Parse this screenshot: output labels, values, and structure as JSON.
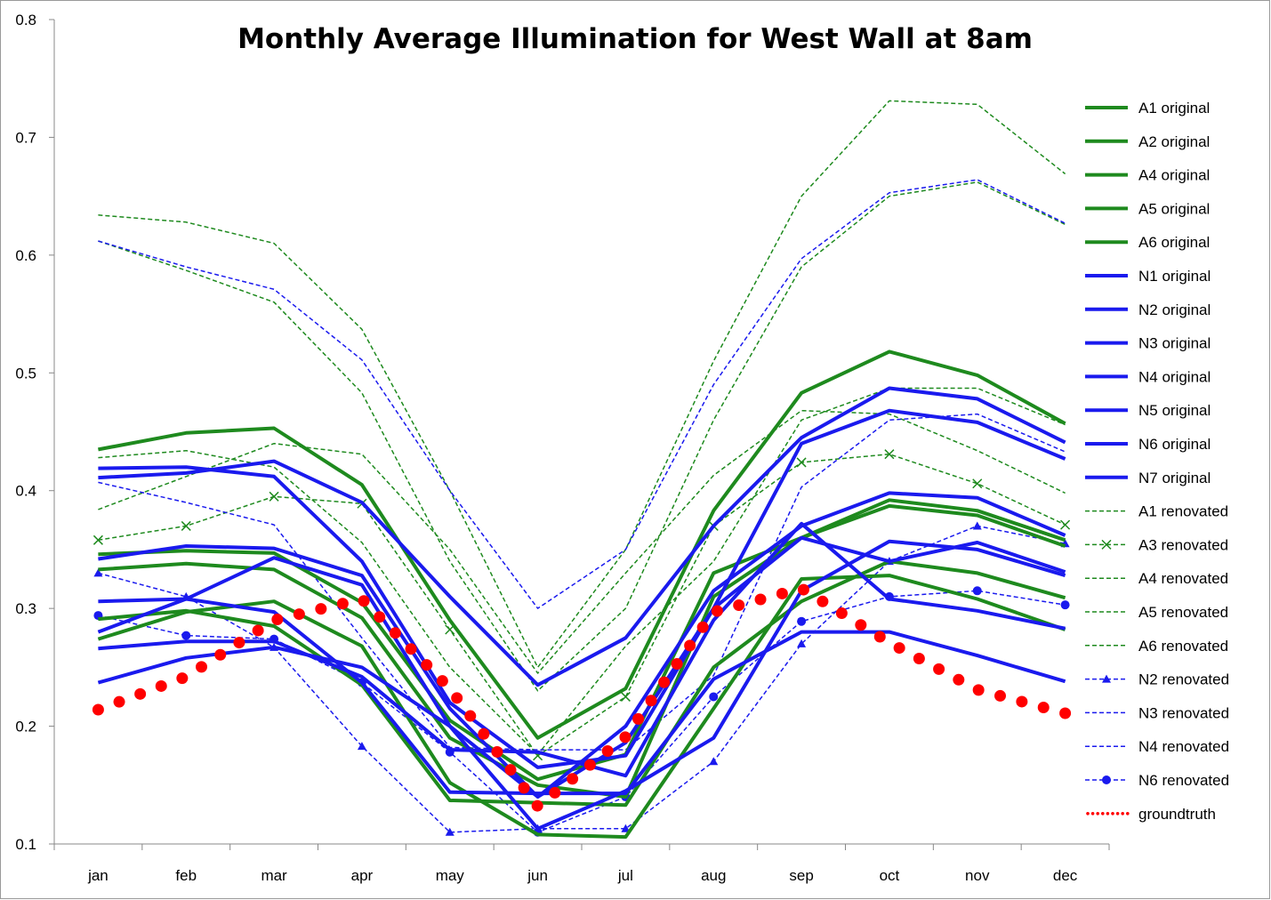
{
  "chart_data": {
    "type": "line",
    "title": "Monthly Average Illumination for West Wall at 8am",
    "xlabel": "",
    "ylabel": "",
    "categories": [
      "jan",
      "feb",
      "mar",
      "apr",
      "may",
      "jun",
      "jul",
      "aug",
      "sep",
      "oct",
      "nov",
      "dec"
    ],
    "ylim": [
      0.1,
      0.8
    ],
    "yticks": [
      "0.1",
      "0.2",
      "0.3",
      "0.4",
      "0.5",
      "0.6",
      "0.7",
      "0.8"
    ],
    "grid": false,
    "legend_position": "right",
    "colors": {
      "green": "#1e8a1e",
      "blue": "#1a1aee",
      "red": "#ff0000"
    },
    "series": [
      {
        "name": "A1 original",
        "color": "#1e8a1e",
        "style": "thick",
        "values": [
          0.435,
          0.449,
          0.453,
          0.405,
          0.29,
          0.19,
          0.232,
          0.383,
          0.483,
          0.518,
          0.498,
          0.457
        ]
      },
      {
        "name": "A2 original",
        "color": "#1e8a1e",
        "style": "thick",
        "values": [
          0.346,
          0.349,
          0.347,
          0.305,
          0.205,
          0.155,
          0.176,
          0.33,
          0.36,
          0.392,
          0.383,
          0.358
        ]
      },
      {
        "name": "A4 original",
        "color": "#1e8a1e",
        "style": "thick",
        "values": [
          0.333,
          0.338,
          0.333,
          0.292,
          0.19,
          0.15,
          0.14,
          0.31,
          0.36,
          0.387,
          0.379,
          0.353
        ]
      },
      {
        "name": "A5 original",
        "color": "#1e8a1e",
        "style": "thick",
        "values": [
          0.274,
          0.297,
          0.306,
          0.268,
          0.152,
          0.108,
          0.106,
          0.215,
          0.325,
          0.328,
          0.308,
          0.282
        ]
      },
      {
        "name": "A6 original",
        "color": "#1e8a1e",
        "style": "thick",
        "values": [
          0.291,
          0.298,
          0.285,
          0.235,
          0.137,
          0.135,
          0.133,
          0.25,
          0.306,
          0.34,
          0.33,
          0.309
        ]
      },
      {
        "name": "N1 original",
        "color": "#1a1aee",
        "style": "thick",
        "values": [
          0.419,
          0.42,
          0.412,
          0.34,
          0.22,
          0.165,
          0.175,
          0.3,
          0.44,
          0.468,
          0.458,
          0.427
        ]
      },
      {
        "name": "N2 original",
        "color": "#1a1aee",
        "style": "thick",
        "values": [
          0.411,
          0.415,
          0.425,
          0.39,
          0.31,
          0.235,
          0.275,
          0.37,
          0.445,
          0.487,
          0.478,
          0.441
        ]
      },
      {
        "name": "N3 original",
        "color": "#1a1aee",
        "style": "thick",
        "values": [
          0.342,
          0.353,
          0.351,
          0.328,
          0.215,
          0.14,
          0.2,
          0.315,
          0.37,
          0.398,
          0.394,
          0.362
        ]
      },
      {
        "name": "N4 original",
        "color": "#1a1aee",
        "style": "thick",
        "values": [
          0.28,
          0.308,
          0.343,
          0.32,
          0.2,
          0.14,
          0.186,
          0.3,
          0.36,
          0.34,
          0.356,
          0.331
        ]
      },
      {
        "name": "N5 original",
        "color": "#1a1aee",
        "style": "thick",
        "values": [
          0.306,
          0.308,
          0.297,
          0.237,
          0.144,
          0.143,
          0.143,
          0.24,
          0.28,
          0.28,
          0.26,
          0.238
        ]
      },
      {
        "name": "N6 original",
        "color": "#1a1aee",
        "style": "thick",
        "values": [
          0.237,
          0.258,
          0.267,
          0.25,
          0.2,
          0.113,
          0.145,
          0.19,
          0.315,
          0.357,
          0.35,
          0.328
        ]
      },
      {
        "name": "N7 original",
        "color": "#1a1aee",
        "style": "thick",
        "values": [
          0.266,
          0.272,
          0.272,
          0.242,
          0.18,
          0.178,
          0.158,
          0.29,
          0.372,
          0.308,
          0.298,
          0.283
        ]
      },
      {
        "name": "A1 renovated",
        "color": "#1e8a1e",
        "style": "dashed",
        "marker": "none",
        "values": [
          0.634,
          0.628,
          0.61,
          0.537,
          0.4,
          0.25,
          0.35,
          0.51,
          0.65,
          0.731,
          0.728,
          0.669
        ]
      },
      {
        "name": "A3 renovated",
        "color": "#1e8a1e",
        "style": "dashed",
        "marker": "x",
        "values": [
          0.358,
          0.37,
          0.395,
          0.389,
          0.282,
          0.175,
          0.225,
          0.37,
          0.424,
          0.431,
          0.406,
          0.371
        ]
      },
      {
        "name": "A4 renovated",
        "color": "#1e8a1e",
        "style": "dashed",
        "marker": "none",
        "values": [
          0.612,
          0.587,
          0.56,
          0.483,
          0.34,
          0.23,
          0.3,
          0.46,
          0.59,
          0.65,
          0.662,
          0.626
        ]
      },
      {
        "name": "A5 renovated",
        "color": "#1e8a1e",
        "style": "dashed",
        "marker": "none",
        "values": [
          0.384,
          0.412,
          0.44,
          0.431,
          0.35,
          0.245,
          0.33,
          0.413,
          0.468,
          0.465,
          0.434,
          0.398
        ]
      },
      {
        "name": "A6 renovated",
        "color": "#1e8a1e",
        "style": "dashed",
        "marker": "none",
        "values": [
          0.428,
          0.434,
          0.42,
          0.356,
          0.25,
          0.176,
          0.268,
          0.34,
          0.46,
          0.487,
          0.487,
          0.456
        ]
      },
      {
        "name": "N2 renovated",
        "color": "#1a1aee",
        "style": "dashed",
        "marker": "triangle",
        "values": [
          0.33,
          0.31,
          0.267,
          0.183,
          0.11,
          0.113,
          0.113,
          0.17,
          0.27,
          0.34,
          0.37,
          0.355
        ]
      },
      {
        "name": "N3 renovated",
        "color": "#1a1aee",
        "style": "dashed",
        "marker": "none",
        "values": [
          0.612,
          0.59,
          0.571,
          0.511,
          0.4,
          0.3,
          0.35,
          0.49,
          0.597,
          0.653,
          0.664,
          0.627
        ]
      },
      {
        "name": "N4 renovated",
        "color": "#1a1aee",
        "style": "dashed",
        "marker": "none",
        "values": [
          0.407,
          0.39,
          0.371,
          0.275,
          0.182,
          0.18,
          0.18,
          0.243,
          0.403,
          0.46,
          0.465,
          0.433
        ]
      },
      {
        "name": "N6 renovated",
        "color": "#1a1aee",
        "style": "dashed",
        "marker": "circle",
        "values": [
          0.294,
          0.277,
          0.274,
          0.237,
          0.178,
          0.11,
          0.14,
          0.225,
          0.289,
          0.31,
          0.315,
          0.303
        ]
      },
      {
        "name": "groundtruth",
        "color": "#ff0000",
        "style": "dotted",
        "values": [
          0.214,
          0.242,
          0.29,
          0.308,
          0.232,
          0.132,
          0.191,
          0.297,
          0.317,
          0.271,
          0.231,
          0.211
        ]
      }
    ]
  }
}
